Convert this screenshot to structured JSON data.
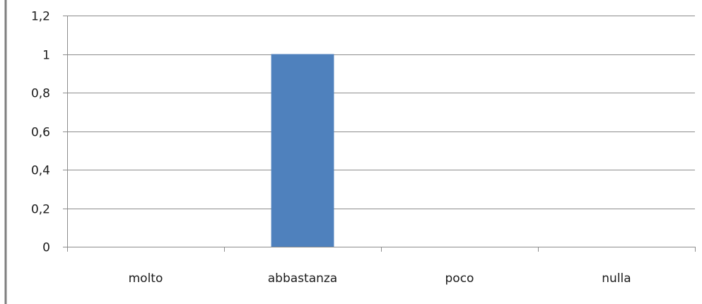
{
  "chart_data": {
    "type": "bar",
    "categories": [
      "molto",
      "abbastanza",
      "poco",
      "nulla"
    ],
    "values": [
      0,
      1,
      0,
      0
    ],
    "ylim": [
      0,
      1.2
    ],
    "yticks": [
      "0",
      "0,2",
      "0,4",
      "0,6",
      "0,8",
      "1",
      "1,2"
    ],
    "ytick_values": [
      0,
      0.2,
      0.4,
      0.6,
      0.8,
      1.0,
      1.2
    ],
    "grid": true,
    "legend": "none",
    "title": "",
    "xlabel": "",
    "ylabel": "",
    "colors": {
      "bar": "#4f81bd",
      "grid": "#8c8c8c",
      "frame": "#7f7f7f"
    }
  }
}
